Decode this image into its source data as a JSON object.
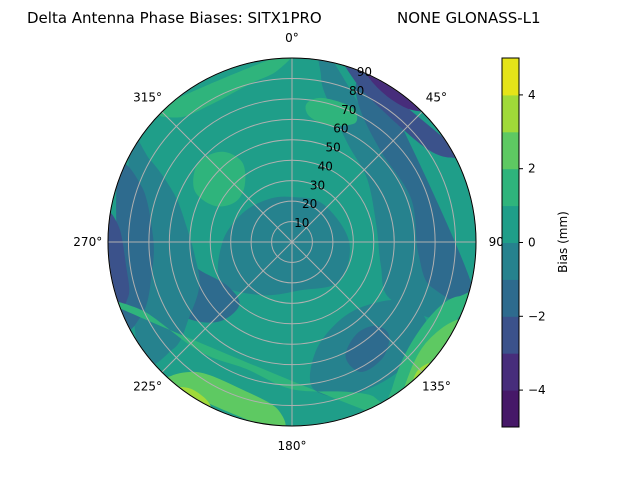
{
  "chart_data": {
    "type": "heatmap",
    "subtype": "polar-filled-contour",
    "title_left": "Delta Antenna Phase Biases: SITX1PRO",
    "title_right": "NONE GLONASS-L1",
    "angular_ticks": [
      "0°",
      "45°",
      "90",
      "135°",
      "180°",
      "225°",
      "270°",
      "315°"
    ],
    "angular_tick_values": [
      0,
      45,
      90,
      135,
      180,
      225,
      270,
      315
    ],
    "radial_ticks": [
      "10",
      "20",
      "30",
      "40",
      "50",
      "60",
      "70",
      "80",
      "90"
    ],
    "radial_tick_values": [
      10,
      20,
      30,
      40,
      50,
      60,
      70,
      80,
      90
    ],
    "rlim": [
      0,
      90
    ],
    "grid": true,
    "colorbar": {
      "label": "Bias (mm)",
      "ticks": [
        "4",
        "2",
        "0",
        "−2",
        "−4"
      ],
      "tick_values": [
        4,
        2,
        0,
        -2,
        -4
      ],
      "range": [
        -5,
        5
      ],
      "levels": [
        -5,
        -4,
        -3,
        -2,
        -1,
        0,
        1,
        2,
        3,
        4,
        5
      ],
      "colors": [
        "#461868",
        "#472d7b",
        "#3b528b",
        "#2e6b8e",
        "#26828e",
        "#1f9e89",
        "#2fb47c",
        "#5ec962",
        "#a0da39",
        "#e5e419"
      ]
    },
    "background_level": 0.5,
    "regions": [
      {
        "value": -0.5,
        "points": [
          [
            0,
            22
          ],
          [
            40,
            24
          ],
          [
            90,
            28
          ],
          [
            130,
            30
          ],
          [
            170,
            24
          ],
          [
            210,
            30
          ],
          [
            240,
            40
          ],
          [
            270,
            34
          ],
          [
            300,
            28
          ],
          [
            330,
            24
          ]
        ]
      },
      {
        "value": -1.5,
        "points": [
          [
            220,
            40
          ],
          [
            235,
            38
          ],
          [
            250,
            45
          ],
          [
            262,
            58
          ],
          [
            258,
            72
          ],
          [
            245,
            70
          ],
          [
            232,
            62
          ],
          [
            222,
            52
          ]
        ]
      },
      {
        "value": -0.5,
        "points": [
          [
            245,
            50
          ],
          [
            262,
            48
          ],
          [
            278,
            52
          ],
          [
            292,
            62
          ],
          [
            300,
            80
          ],
          [
            300,
            92
          ],
          [
            235,
            92
          ],
          [
            228,
            78
          ],
          [
            234,
            62
          ]
        ]
      },
      {
        "value": -1.5,
        "points": [
          [
            258,
            70
          ],
          [
            272,
            68
          ],
          [
            290,
            78
          ],
          [
            292,
            92
          ],
          [
            245,
            92
          ],
          [
            245,
            80
          ]
        ]
      },
      {
        "value": -2.5,
        "points": [
          [
            252,
            84
          ],
          [
            262,
            82
          ],
          [
            275,
            85
          ],
          [
            278,
            92
          ],
          [
            250,
            92
          ]
        ]
      },
      {
        "value": -0.5,
        "points": [
          [
            15,
            70
          ],
          [
            30,
            55
          ],
          [
            50,
            48
          ],
          [
            80,
            42
          ],
          [
            105,
            45
          ],
          [
            120,
            55
          ],
          [
            118,
            80
          ],
          [
            110,
            92
          ],
          [
            12,
            92
          ],
          [
            10,
            82
          ]
        ]
      },
      {
        "value": -1.5,
        "points": [
          [
            28,
            72
          ],
          [
            45,
            62
          ],
          [
            70,
            62
          ],
          [
            95,
            62
          ],
          [
            108,
            72
          ],
          [
            105,
            92
          ],
          [
            26,
            92
          ],
          [
            22,
            84
          ]
        ]
      },
      {
        "value": -2.5,
        "points": [
          [
            22,
            84
          ],
          [
            35,
            78
          ],
          [
            55,
            80
          ],
          [
            62,
            88
          ],
          [
            60,
            92
          ],
          [
            18,
            92
          ]
        ]
      },
      {
        "value": -3.5,
        "points": [
          [
            26,
            88
          ],
          [
            34,
            85
          ],
          [
            42,
            87
          ],
          [
            44,
            92
          ],
          [
            24,
            92
          ]
        ]
      },
      {
        "value": 1.5,
        "points": [
          [
            8,
            62
          ],
          [
            18,
            60
          ],
          [
            28,
            66
          ],
          [
            24,
            72
          ],
          [
            12,
            72
          ],
          [
            6,
            68
          ]
        ]
      },
      {
        "value": -0.5,
        "points": [
          [
            118,
            62
          ],
          [
            130,
            48
          ],
          [
            150,
            45
          ],
          [
            168,
            55
          ],
          [
            172,
            72
          ],
          [
            160,
            80
          ],
          [
            140,
            82
          ],
          [
            122,
            78
          ]
        ]
      },
      {
        "value": -1.5,
        "points": [
          [
            135,
            58
          ],
          [
            145,
            55
          ],
          [
            155,
            62
          ],
          [
            152,
            72
          ],
          [
            142,
            72
          ],
          [
            134,
            66
          ]
        ]
      },
      {
        "value": 1.5,
        "points": [
          [
            160,
            78
          ],
          [
            180,
            72
          ],
          [
            200,
            66
          ],
          [
            220,
            70
          ],
          [
            245,
            80
          ],
          [
            250,
            92
          ],
          [
            155,
            92
          ],
          [
            152,
            86
          ]
        ]
      },
      {
        "value": 2.5,
        "points": [
          [
            185,
            82
          ],
          [
            200,
            76
          ],
          [
            215,
            78
          ],
          [
            222,
            88
          ],
          [
            220,
            92
          ],
          [
            185,
            92
          ]
        ]
      },
      {
        "value": 3.5,
        "points": [
          [
            208,
            88
          ],
          [
            214,
            87
          ],
          [
            218,
            90
          ],
          [
            218,
            92
          ],
          [
            206,
            92
          ]
        ]
      },
      {
        "value": 1.5,
        "points": [
          [
            112,
            80
          ],
          [
            122,
            76
          ],
          [
            135,
            78
          ],
          [
            145,
            86
          ],
          [
            148,
            92
          ],
          [
            108,
            92
          ],
          [
            108,
            86
          ]
        ]
      },
      {
        "value": 2.5,
        "points": [
          [
            118,
            86
          ],
          [
            128,
            82
          ],
          [
            138,
            86
          ],
          [
            142,
            92
          ],
          [
            116,
            92
          ]
        ]
      },
      {
        "value": 3.5,
        "points": [
          [
            132,
            89
          ],
          [
            136,
            88
          ],
          [
            139,
            91
          ],
          [
            130,
            92
          ]
        ]
      },
      {
        "value": 1.5,
        "points": [
          [
            295,
            42
          ],
          [
            305,
            34
          ],
          [
            320,
            36
          ],
          [
            328,
            46
          ],
          [
            322,
            56
          ],
          [
            310,
            60
          ],
          [
            298,
            54
          ]
        ]
      },
      {
        "value": 1.5,
        "points": [
          [
            318,
            82
          ],
          [
            330,
            78
          ],
          [
            345,
            80
          ],
          [
            355,
            84
          ],
          [
            358,
            92
          ],
          [
            316,
            92
          ]
        ]
      }
    ]
  }
}
